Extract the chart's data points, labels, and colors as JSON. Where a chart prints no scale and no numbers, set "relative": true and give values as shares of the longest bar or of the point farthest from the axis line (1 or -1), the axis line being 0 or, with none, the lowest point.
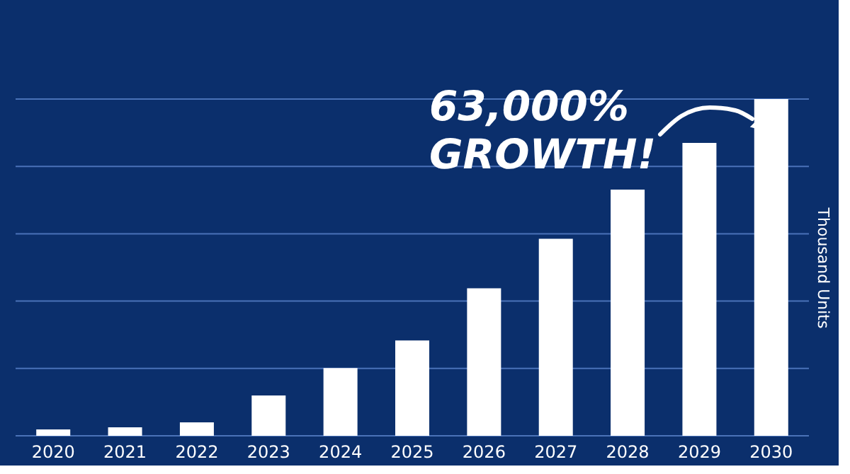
{
  "chart_data": {
    "type": "bar",
    "relative": true,
    "ylabel": "Thousand Units",
    "categories": [
      "2020",
      "2021",
      "2022",
      "2023",
      "2024",
      "2025",
      "2026",
      "2027",
      "2028",
      "2029",
      "2030"
    ],
    "values": [
      0.019,
      0.025,
      0.04,
      0.12,
      0.201,
      0.283,
      0.438,
      0.585,
      0.731,
      0.87,
      1.0
    ],
    "color": "#ffffff",
    "ref_lines": [
      {
        "axis": "y",
        "value": 0,
        "color": "#4a72b8"
      },
      {
        "axis": "y",
        "value": 0.2,
        "color": "#4a72b8"
      },
      {
        "axis": "y",
        "value": 0.4,
        "color": "#4a72b8"
      },
      {
        "axis": "y",
        "value": 0.6,
        "color": "#4a72b8"
      },
      {
        "axis": "y",
        "value": 0.8,
        "color": "#4a72b8"
      },
      {
        "axis": "y",
        "value": 1.0,
        "color": "#4a72b8"
      }
    ],
    "annotations": [
      "63,000% GROWTH!"
    ]
  }
}
